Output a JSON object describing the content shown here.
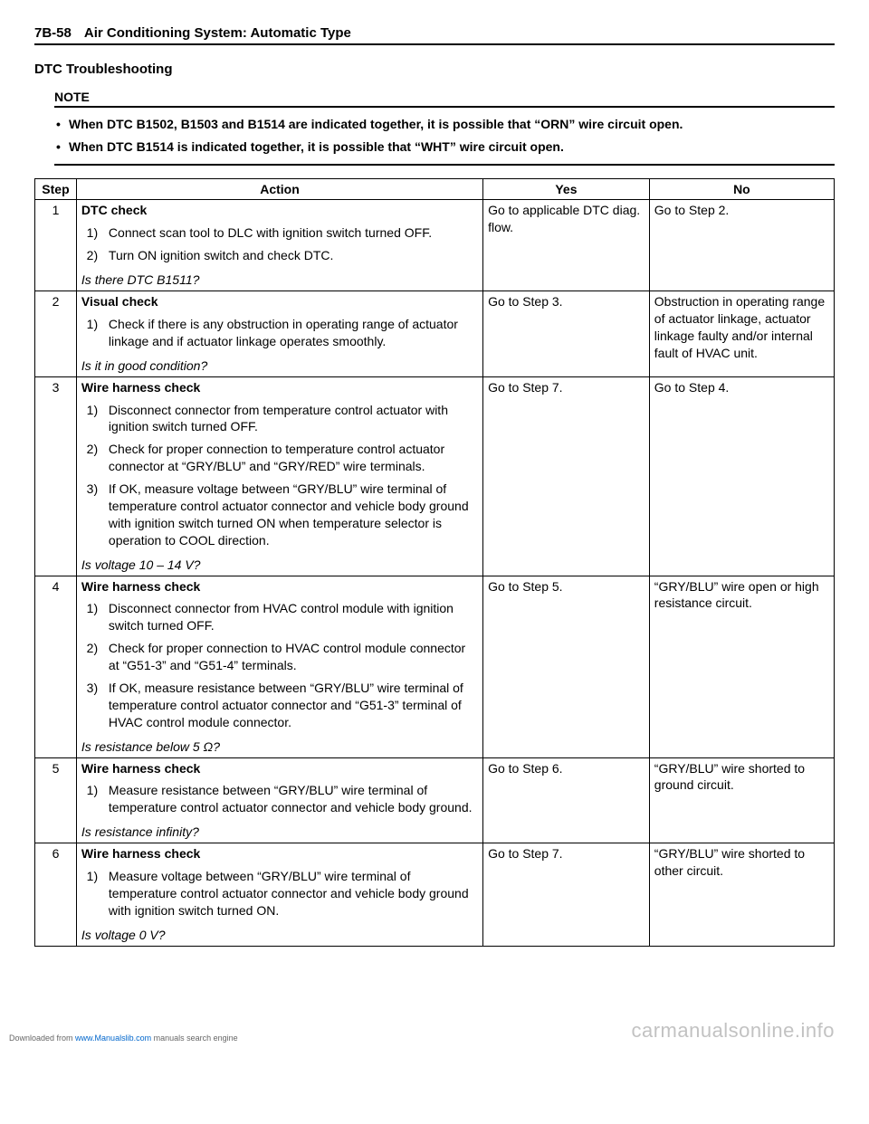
{
  "header": {
    "page_num": "7B-58",
    "title": "Air Conditioning System: Automatic Type"
  },
  "section_title": "DTC Troubleshooting",
  "note": {
    "label": "NOTE",
    "items": [
      "When DTC B1502, B1503 and B1514 are indicated together, it is possible that “ORN” wire circuit open.",
      "When DTC B1514 is indicated together, it is possible that “WHT” wire circuit open."
    ]
  },
  "table": {
    "headers": {
      "step": "Step",
      "action": "Action",
      "yes": "Yes",
      "no": "No"
    },
    "rows": [
      {
        "step": "1",
        "title": "DTC check",
        "subs": [
          "Connect scan tool to DLC with ignition switch turned OFF.",
          "Turn ON ignition switch and check DTC."
        ],
        "question": "Is there DTC B1511?",
        "yes": "Go to applicable DTC diag. flow.",
        "no": "Go to Step 2."
      },
      {
        "step": "2",
        "title": "Visual check",
        "subs": [
          "Check if there is any obstruction in operating range of actuator linkage and if actuator linkage operates smoothly."
        ],
        "question": "Is it in good condition?",
        "yes": "Go to Step 3.",
        "no": "Obstruction in operating range of actuator linkage, actuator linkage faulty and/or internal fault of HVAC unit."
      },
      {
        "step": "3",
        "title": "Wire harness check",
        "subs": [
          "Disconnect connector from temperature control actuator with ignition switch turned OFF.",
          "Check for proper connection to temperature control actuator connector at “GRY/BLU” and “GRY/RED” wire terminals.",
          "If OK, measure voltage between “GRY/BLU” wire terminal of temperature control actuator connector and vehicle body ground with ignition switch turned ON when temperature selector is operation to COOL direction."
        ],
        "question": "Is voltage 10 – 14 V?",
        "yes": "Go to Step 7.",
        "no": "Go to Step 4."
      },
      {
        "step": "4",
        "title": "Wire harness check",
        "subs": [
          "Disconnect connector from HVAC control module with ignition switch turned OFF.",
          "Check for proper connection to HVAC control module connector at “G51-3” and “G51-4” terminals.",
          "If OK, measure resistance between “GRY/BLU” wire terminal of temperature control actuator connector and “G51-3” terminal of HVAC control module connector."
        ],
        "question": "Is resistance below 5 Ω?",
        "yes": "Go to Step 5.",
        "no": "“GRY/BLU” wire open or high resistance circuit."
      },
      {
        "step": "5",
        "title": "Wire harness check",
        "subs": [
          "Measure resistance between “GRY/BLU” wire terminal of temperature control actuator connector and vehicle body ground."
        ],
        "question": "Is resistance infinity?",
        "yes": "Go to Step 6.",
        "no": "“GRY/BLU” wire shorted to ground circuit."
      },
      {
        "step": "6",
        "title": "Wire harness check",
        "subs": [
          "Measure voltage between “GRY/BLU” wire terminal of temperature control actuator connector and vehicle body ground with ignition switch turned ON."
        ],
        "question": "Is voltage 0 V?",
        "yes": "Go to Step 7.",
        "no": "“GRY/BLU” wire shorted to other circuit."
      }
    ]
  },
  "footer": {
    "left_prefix": "Downloaded from ",
    "left_link": "www.Manualslib.com",
    "left_suffix": " manuals search engine",
    "right": "carmanualsonline.info"
  }
}
